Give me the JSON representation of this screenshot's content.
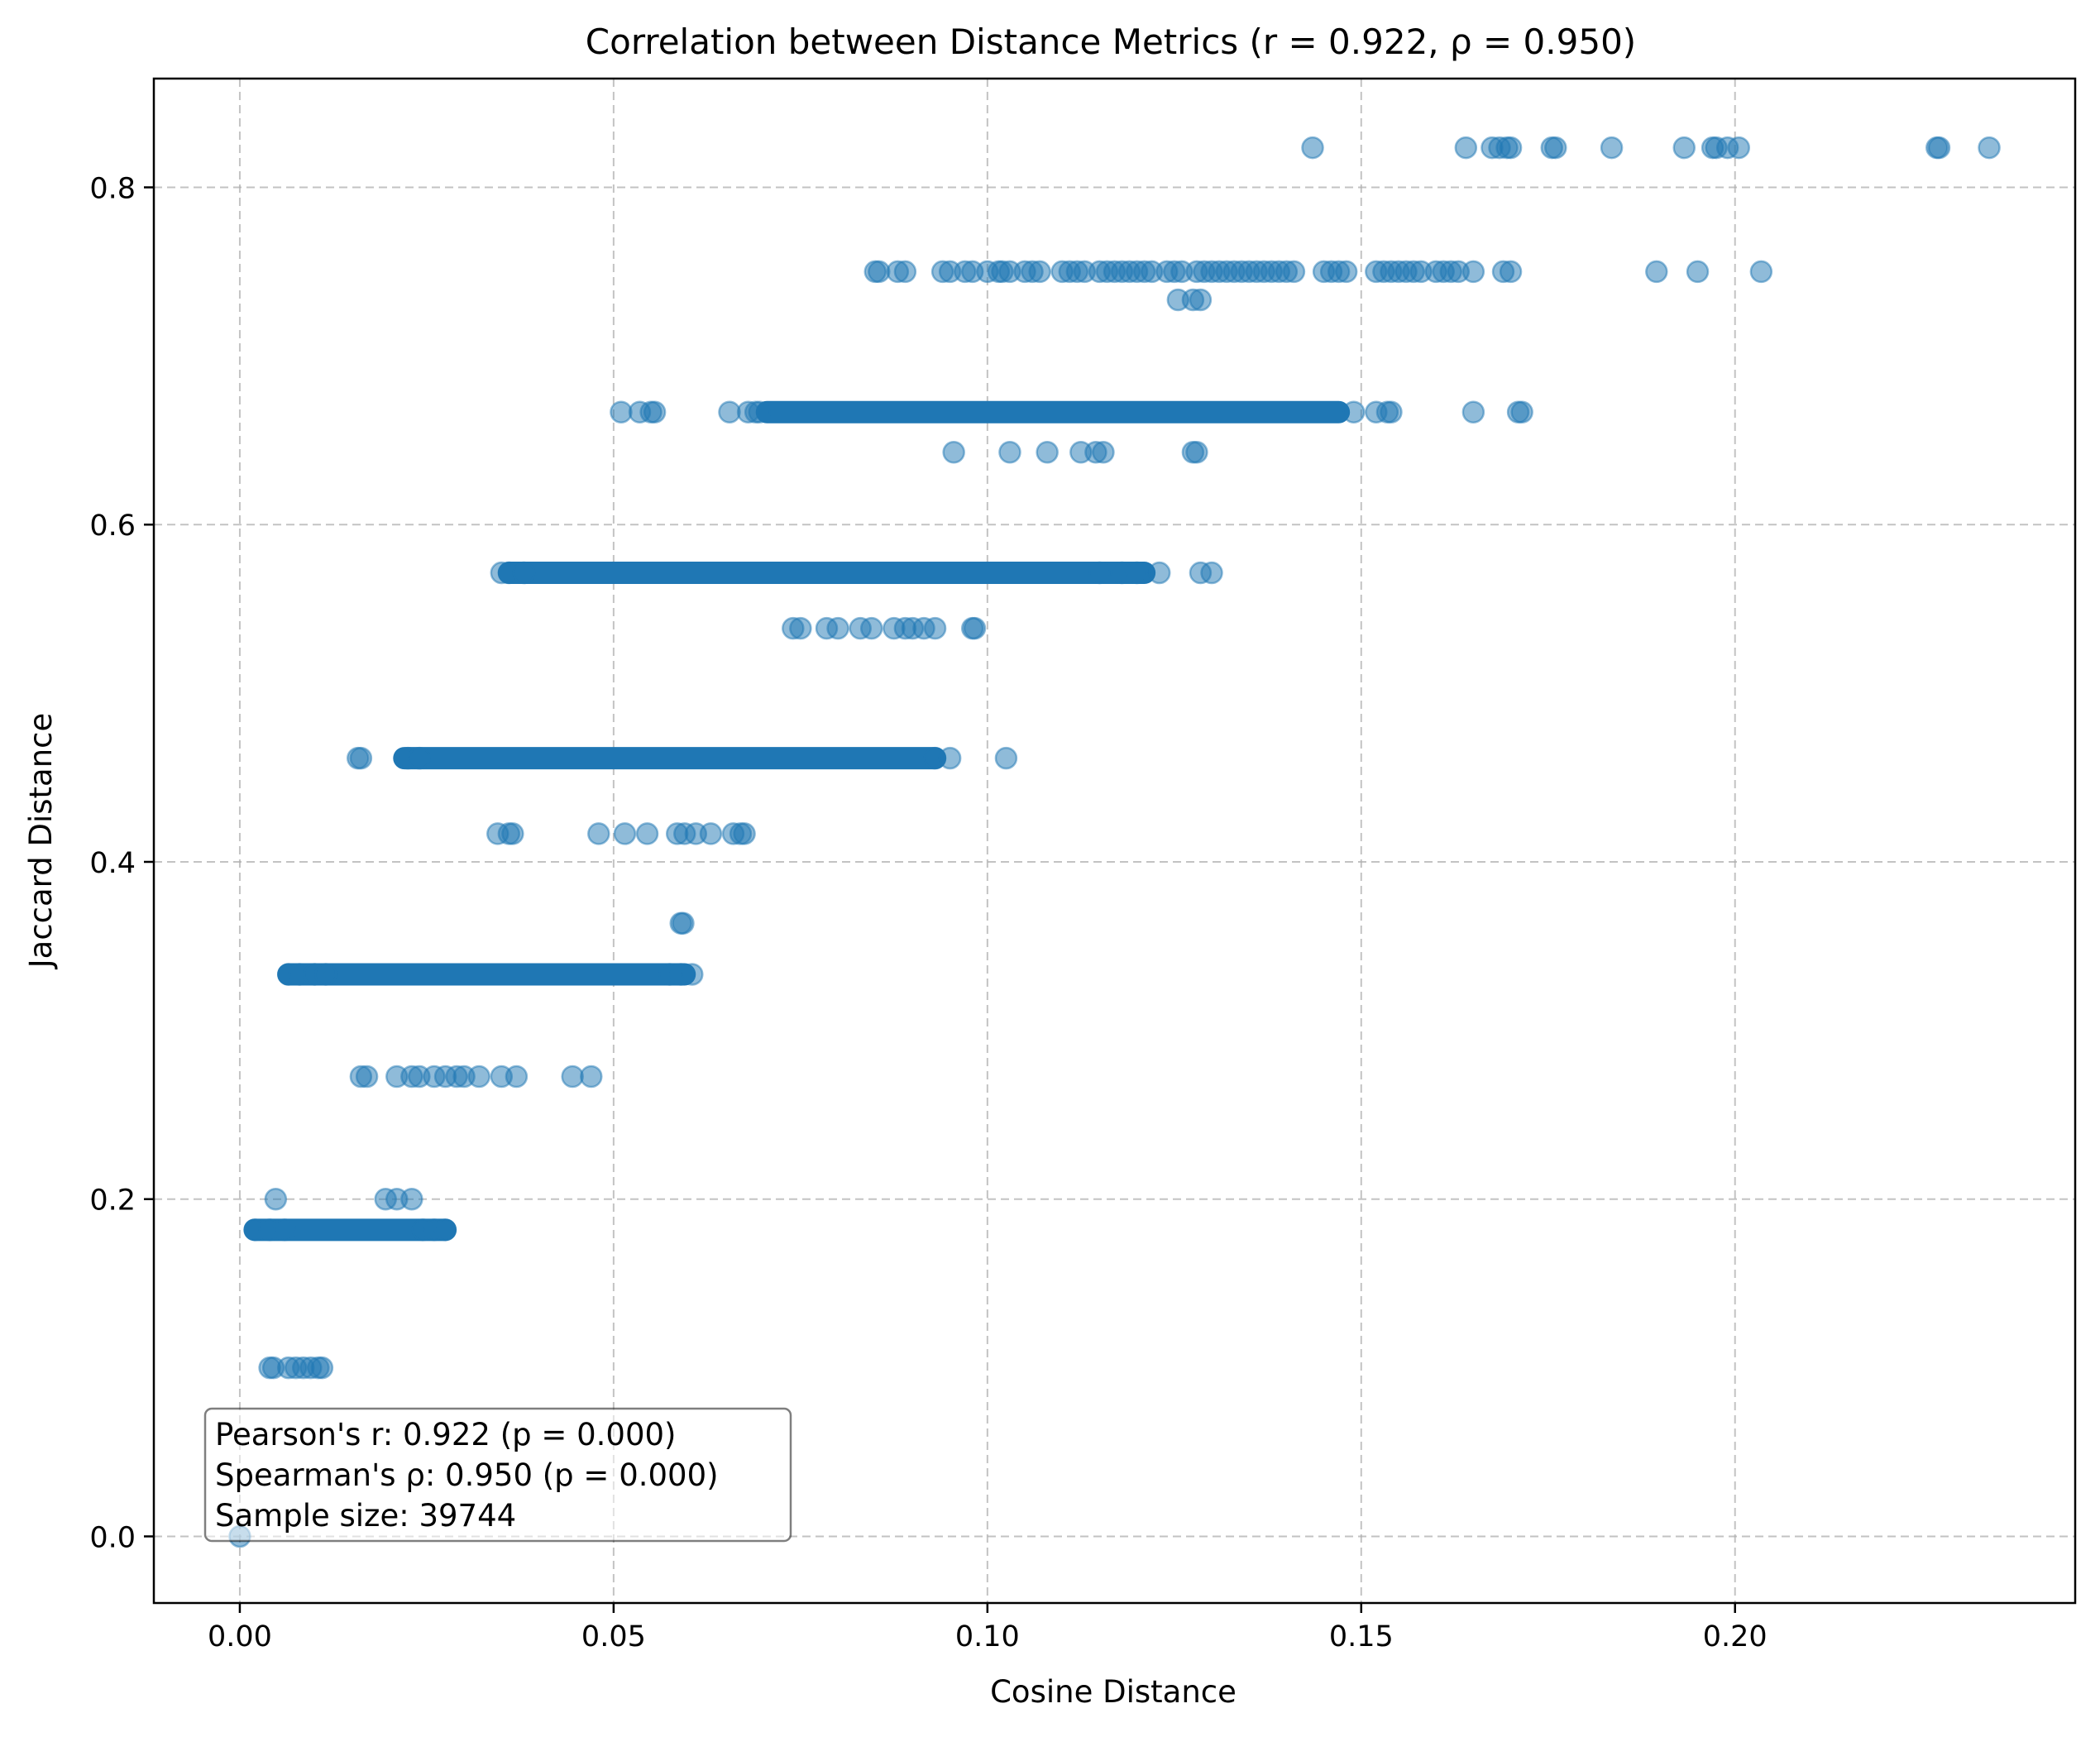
{
  "chart_data": {
    "type": "scatter",
    "title": "Correlation between Distance Metrics (r = 0.922, ρ = 0.950)",
    "xlabel": "Cosine Distance",
    "ylabel": "Jaccard Distance",
    "xlim": [
      -0.0115,
      0.2455
    ],
    "ylim": [
      -0.0395,
      0.8645
    ],
    "xticks": [
      "0.00",
      "0.05",
      "0.10",
      "0.15",
      "0.20"
    ],
    "xtick_values": [
      0.0,
      0.05,
      0.1,
      0.15,
      0.2
    ],
    "yticks": [
      "0.0",
      "0.2",
      "0.4",
      "0.6",
      "0.8"
    ],
    "ytick_values": [
      0.0,
      0.2,
      0.4,
      0.6,
      0.8
    ],
    "grid": true,
    "point_color": "#1f77b4",
    "point_alpha": 0.5,
    "stats_box": {
      "line1": "Pearson's r: 0.922 (p = 0.000)",
      "line2": "Spearman's ρ: 0.950 (p = 0.000)",
      "line3": "Sample size: 39744",
      "placement": "bottom-left"
    },
    "dense_segments": [
      {
        "y": 0.1818,
        "x_start": 0.002,
        "x_end": 0.0275
      },
      {
        "y": 0.3333,
        "x_start": 0.0065,
        "x_end": 0.0595
      },
      {
        "y": 0.4615,
        "x_start": 0.022,
        "x_end": 0.093
      },
      {
        "y": 0.5714,
        "x_start": 0.036,
        "x_end": 0.121
      },
      {
        "y": 0.6667,
        "x_start": 0.0705,
        "x_end": 0.147
      }
    ],
    "series": [
      {
        "points": [
          [
            0.0,
            0.0
          ],
          [
            0.004,
            0.1
          ],
          [
            0.0045,
            0.1
          ],
          [
            0.0065,
            0.1
          ],
          [
            0.0075,
            0.1
          ],
          [
            0.0085,
            0.1
          ],
          [
            0.0095,
            0.1
          ],
          [
            0.0105,
            0.1
          ],
          [
            0.011,
            0.1
          ],
          [
            0.0048,
            0.2
          ],
          [
            0.0195,
            0.2
          ],
          [
            0.021,
            0.2
          ],
          [
            0.023,
            0.2
          ],
          [
            0.002,
            0.1818
          ],
          [
            0.004,
            0.1818
          ],
          [
            0.006,
            0.1818
          ],
          [
            0.0245,
            0.1818
          ],
          [
            0.026,
            0.1818
          ],
          [
            0.0275,
            0.1818
          ],
          [
            0.0162,
            0.2727
          ],
          [
            0.017,
            0.2727
          ],
          [
            0.021,
            0.2727
          ],
          [
            0.023,
            0.2727
          ],
          [
            0.024,
            0.2727
          ],
          [
            0.026,
            0.2727
          ],
          [
            0.0275,
            0.2727
          ],
          [
            0.029,
            0.2727
          ],
          [
            0.03,
            0.2727
          ],
          [
            0.032,
            0.2727
          ],
          [
            0.035,
            0.2727
          ],
          [
            0.037,
            0.2727
          ],
          [
            0.0445,
            0.2727
          ],
          [
            0.047,
            0.2727
          ],
          [
            0.0065,
            0.3333
          ],
          [
            0.008,
            0.3333
          ],
          [
            0.01,
            0.3333
          ],
          [
            0.0115,
            0.3333
          ],
          [
            0.0575,
            0.3333
          ],
          [
            0.059,
            0.3333
          ],
          [
            0.0605,
            0.3333
          ],
          [
            0.059,
            0.3636
          ],
          [
            0.0593,
            0.3636
          ],
          [
            0.0345,
            0.4167
          ],
          [
            0.036,
            0.4167
          ],
          [
            0.0365,
            0.4167
          ],
          [
            0.048,
            0.4167
          ],
          [
            0.0515,
            0.4167
          ],
          [
            0.0545,
            0.4167
          ],
          [
            0.0585,
            0.4167
          ],
          [
            0.0595,
            0.4167
          ],
          [
            0.061,
            0.4167
          ],
          [
            0.063,
            0.4167
          ],
          [
            0.066,
            0.4167
          ],
          [
            0.067,
            0.4167
          ],
          [
            0.0675,
            0.4167
          ],
          [
            0.0158,
            0.4615
          ],
          [
            0.0162,
            0.4615
          ],
          [
            0.0225,
            0.4615
          ],
          [
            0.024,
            0.4615
          ],
          [
            0.093,
            0.4615
          ],
          [
            0.095,
            0.4615
          ],
          [
            0.1025,
            0.4615
          ],
          [
            0.074,
            0.5385
          ],
          [
            0.075,
            0.5385
          ],
          [
            0.0785,
            0.5385
          ],
          [
            0.08,
            0.5385
          ],
          [
            0.083,
            0.5385
          ],
          [
            0.0845,
            0.5385
          ],
          [
            0.0875,
            0.5385
          ],
          [
            0.089,
            0.5385
          ],
          [
            0.09,
            0.5385
          ],
          [
            0.0915,
            0.5385
          ],
          [
            0.093,
            0.5385
          ],
          [
            0.098,
            0.5385
          ],
          [
            0.0983,
            0.5385
          ],
          [
            0.035,
            0.5714
          ],
          [
            0.036,
            0.5714
          ],
          [
            0.038,
            0.5714
          ],
          [
            0.115,
            0.5714
          ],
          [
            0.118,
            0.5714
          ],
          [
            0.12,
            0.5714
          ],
          [
            0.123,
            0.5714
          ],
          [
            0.1285,
            0.5714
          ],
          [
            0.13,
            0.5714
          ],
          [
            0.0955,
            0.6429
          ],
          [
            0.103,
            0.6429
          ],
          [
            0.108,
            0.6429
          ],
          [
            0.1125,
            0.6429
          ],
          [
            0.1145,
            0.6429
          ],
          [
            0.1155,
            0.6429
          ],
          [
            0.1275,
            0.6429
          ],
          [
            0.128,
            0.6429
          ],
          [
            0.051,
            0.6667
          ],
          [
            0.0535,
            0.6667
          ],
          [
            0.055,
            0.6667
          ],
          [
            0.0555,
            0.6667
          ],
          [
            0.0655,
            0.6667
          ],
          [
            0.068,
            0.6667
          ],
          [
            0.069,
            0.6667
          ],
          [
            0.0695,
            0.6667
          ],
          [
            0.149,
            0.6667
          ],
          [
            0.152,
            0.6667
          ],
          [
            0.1535,
            0.6667
          ],
          [
            0.154,
            0.6667
          ],
          [
            0.165,
            0.6667
          ],
          [
            0.171,
            0.6667
          ],
          [
            0.1715,
            0.6667
          ],
          [
            0.1255,
            0.7333
          ],
          [
            0.1275,
            0.7333
          ],
          [
            0.1285,
            0.7333
          ],
          [
            0.085,
            0.75
          ],
          [
            0.0855,
            0.75
          ],
          [
            0.088,
            0.75
          ],
          [
            0.089,
            0.75
          ],
          [
            0.094,
            0.75
          ],
          [
            0.095,
            0.75
          ],
          [
            0.097,
            0.75
          ],
          [
            0.098,
            0.75
          ],
          [
            0.1,
            0.75
          ],
          [
            0.1015,
            0.75
          ],
          [
            0.102,
            0.75
          ],
          [
            0.103,
            0.75
          ],
          [
            0.105,
            0.75
          ],
          [
            0.106,
            0.75
          ],
          [
            0.107,
            0.75
          ],
          [
            0.11,
            0.75
          ],
          [
            0.111,
            0.75
          ],
          [
            0.112,
            0.75
          ],
          [
            0.113,
            0.75
          ],
          [
            0.115,
            0.75
          ],
          [
            0.116,
            0.75
          ],
          [
            0.117,
            0.75
          ],
          [
            0.118,
            0.75
          ],
          [
            0.119,
            0.75
          ],
          [
            0.12,
            0.75
          ],
          [
            0.121,
            0.75
          ],
          [
            0.122,
            0.75
          ],
          [
            0.124,
            0.75
          ],
          [
            0.125,
            0.75
          ],
          [
            0.126,
            0.75
          ],
          [
            0.128,
            0.75
          ],
          [
            0.129,
            0.75
          ],
          [
            0.13,
            0.75
          ],
          [
            0.131,
            0.75
          ],
          [
            0.132,
            0.75
          ],
          [
            0.133,
            0.75
          ],
          [
            0.134,
            0.75
          ],
          [
            0.135,
            0.75
          ],
          [
            0.136,
            0.75
          ],
          [
            0.137,
            0.75
          ],
          [
            0.138,
            0.75
          ],
          [
            0.139,
            0.75
          ],
          [
            0.14,
            0.75
          ],
          [
            0.141,
            0.75
          ],
          [
            0.145,
            0.75
          ],
          [
            0.146,
            0.75
          ],
          [
            0.147,
            0.75
          ],
          [
            0.148,
            0.75
          ],
          [
            0.152,
            0.75
          ],
          [
            0.153,
            0.75
          ],
          [
            0.154,
            0.75
          ],
          [
            0.155,
            0.75
          ],
          [
            0.156,
            0.75
          ],
          [
            0.157,
            0.75
          ],
          [
            0.158,
            0.75
          ],
          [
            0.16,
            0.75
          ],
          [
            0.161,
            0.75
          ],
          [
            0.162,
            0.75
          ],
          [
            0.163,
            0.75
          ],
          [
            0.165,
            0.75
          ],
          [
            0.169,
            0.75
          ],
          [
            0.17,
            0.75
          ],
          [
            0.1895,
            0.75
          ],
          [
            0.195,
            0.75
          ],
          [
            0.2035,
            0.75
          ],
          [
            0.1435,
            0.8235
          ],
          [
            0.164,
            0.8235
          ],
          [
            0.1675,
            0.8235
          ],
          [
            0.1685,
            0.8235
          ],
          [
            0.1695,
            0.8235
          ],
          [
            0.17,
            0.8235
          ],
          [
            0.1755,
            0.8235
          ],
          [
            0.176,
            0.8235
          ],
          [
            0.1835,
            0.8235
          ],
          [
            0.1932,
            0.8235
          ],
          [
            0.197,
            0.8235
          ],
          [
            0.1975,
            0.8235
          ],
          [
            0.199,
            0.8235
          ],
          [
            0.2005,
            0.8235
          ],
          [
            0.227,
            0.8235
          ],
          [
            0.2273,
            0.8235
          ],
          [
            0.234,
            0.8235
          ]
        ]
      }
    ]
  }
}
